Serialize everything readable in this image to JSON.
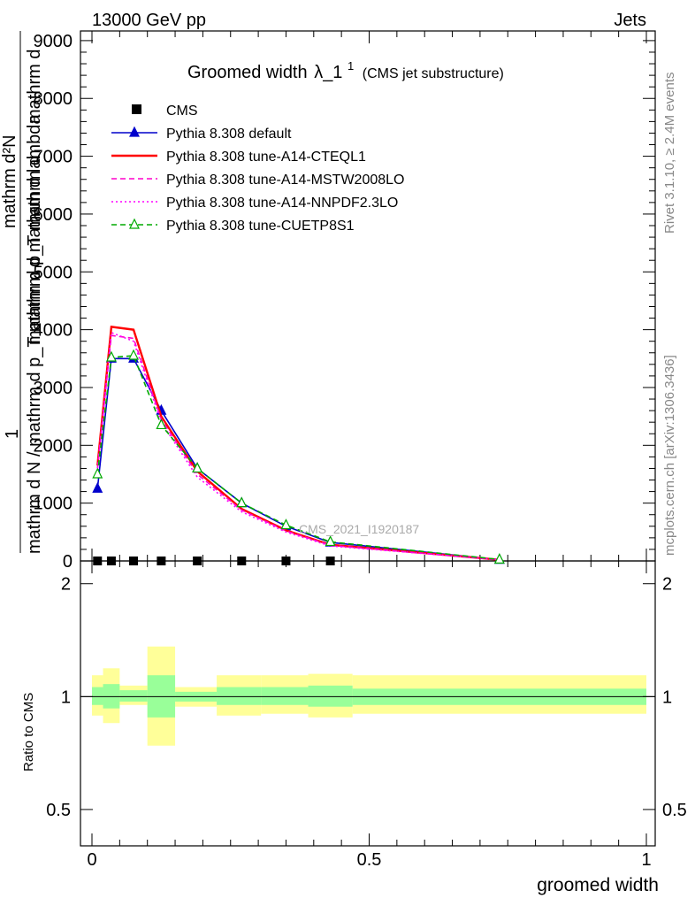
{
  "header": {
    "left": "13000 GeV pp",
    "right": "Jets"
  },
  "main_title": {
    "prefix": "Groomed width",
    "lambda": "λ_1",
    "sup": "1",
    "suffix": "(CMS jet substructure)"
  },
  "side_labels": {
    "rivet": "Rivet 3.1.10, ≥ 2.4M events",
    "mcplots": "mcplots.cern.ch [arXiv:1306.3436]"
  },
  "watermark": "CMS_2021_I1920187",
  "ylabel_main": {
    "one": "1",
    "num": "mathrm d²N",
    "den": "mathrm d N / mathrm d p_T mathrm d mathrm d lambda",
    "frac_num": "mathrm d",
    "frac_den": "mathrm d p_T mathrm d"
  },
  "ylabel_ratio": "Ratio to CMS",
  "xlabel": "groomed width",
  "chart_data": [
    {
      "type": "line",
      "panel": "main",
      "title": "Groomed width λ_1^1 (CMS jet substructure)",
      "xlim": [
        0,
        1
      ],
      "ylim": [
        0,
        9000
      ],
      "y_ticks": [
        0,
        1000,
        2000,
        3000,
        4000,
        5000,
        6000,
        7000,
        8000,
        9000
      ],
      "y_tick_labels": [
        "0",
        "1000",
        "2000",
        "3000",
        "4000",
        "5000",
        "6000",
        "7000",
        "8000",
        "9000"
      ],
      "legend_position": "top-left",
      "data_points": {
        "name": "CMS",
        "x": [
          0.01,
          0.035,
          0.075,
          0.125,
          0.19,
          0.27,
          0.35,
          0.43
        ],
        "y": [
          0,
          0,
          0,
          0,
          0,
          0,
          0,
          0
        ]
      },
      "series": [
        {
          "name": "Pythia 8.308 default",
          "color": "#0000cc",
          "style": "solid",
          "marker": "triangle-filled",
          "x": [
            0.01,
            0.035,
            0.075,
            0.125,
            0.19,
            0.27,
            0.35,
            0.43,
            0.735
          ],
          "y": [
            1250,
            3500,
            3500,
            2600,
            1600,
            1000,
            600,
            320,
            20
          ]
        },
        {
          "name": "Pythia 8.308 tune-A14-CTEQL1",
          "color": "#ff0000",
          "style": "solid",
          "marker": "none",
          "x": [
            0.01,
            0.035,
            0.075,
            0.125,
            0.19,
            0.27,
            0.35,
            0.43,
            0.735
          ],
          "y": [
            1650,
            4050,
            4000,
            2500,
            1550,
            900,
            530,
            280,
            20
          ]
        },
        {
          "name": "Pythia 8.308 tune-A14-MSTW2008LO",
          "color": "#ff00cc",
          "style": "dashed",
          "marker": "none",
          "x": [
            0.01,
            0.035,
            0.075,
            0.125,
            0.19,
            0.27,
            0.35,
            0.43,
            0.735
          ],
          "y": [
            1600,
            3900,
            3850,
            2450,
            1500,
            880,
            520,
            270,
            20
          ]
        },
        {
          "name": "Pythia 8.308 tune-A14-NNPDF2.3LO",
          "color": "#ff00ff",
          "style": "dotted",
          "marker": "none",
          "x": [
            0.01,
            0.035,
            0.075,
            0.125,
            0.19,
            0.27,
            0.35,
            0.43,
            0.735
          ],
          "y": [
            1600,
            3950,
            3800,
            2400,
            1450,
            850,
            500,
            260,
            20
          ]
        },
        {
          "name": "Pythia 8.308 tune-CUETP8S1",
          "color": "#00aa00",
          "style": "dashed",
          "marker": "triangle-open",
          "x": [
            0.01,
            0.035,
            0.075,
            0.125,
            0.19,
            0.27,
            0.35,
            0.43,
            0.735
          ],
          "y": [
            1500,
            3520,
            3550,
            2350,
            1600,
            1000,
            620,
            330,
            25
          ]
        }
      ]
    },
    {
      "type": "area",
      "panel": "ratio",
      "xlim": [
        0,
        1
      ],
      "ylim": [
        0.4,
        2.3
      ],
      "y_scale": "log",
      "y_ticks": [
        0.5,
        1,
        2
      ],
      "y_tick_labels": [
        "0.5",
        "1",
        "2"
      ],
      "x_ticks": [
        0,
        0.5,
        1
      ],
      "x_tick_labels": [
        "0",
        "0.5",
        "1"
      ],
      "bins": [
        {
          "x0": 0.0,
          "x1": 0.02,
          "g": [
            0.95,
            1.06
          ],
          "y": [
            0.89,
            1.14
          ]
        },
        {
          "x0": 0.02,
          "x1": 0.05,
          "g": [
            0.93,
            1.08
          ],
          "y": [
            0.85,
            1.19
          ]
        },
        {
          "x0": 0.05,
          "x1": 0.1,
          "g": [
            0.97,
            1.04
          ],
          "y": [
            0.95,
            1.07
          ]
        },
        {
          "x0": 0.1,
          "x1": 0.15,
          "g": [
            0.88,
            1.14
          ],
          "y": [
            0.74,
            1.36
          ]
        },
        {
          "x0": 0.15,
          "x1": 0.225,
          "g": [
            0.97,
            1.03
          ],
          "y": [
            0.94,
            1.06
          ]
        },
        {
          "x0": 0.225,
          "x1": 0.305,
          "g": [
            0.95,
            1.06
          ],
          "y": [
            0.89,
            1.14
          ]
        },
        {
          "x0": 0.305,
          "x1": 0.39,
          "g": [
            0.95,
            1.06
          ],
          "y": [
            0.9,
            1.14
          ]
        },
        {
          "x0": 0.39,
          "x1": 0.47,
          "g": [
            0.94,
            1.07
          ],
          "y": [
            0.88,
            1.15
          ]
        },
        {
          "x0": 0.47,
          "x1": 1.0,
          "g": [
            0.95,
            1.05
          ],
          "y": [
            0.9,
            1.14
          ]
        }
      ],
      "reference_line": 1
    }
  ]
}
